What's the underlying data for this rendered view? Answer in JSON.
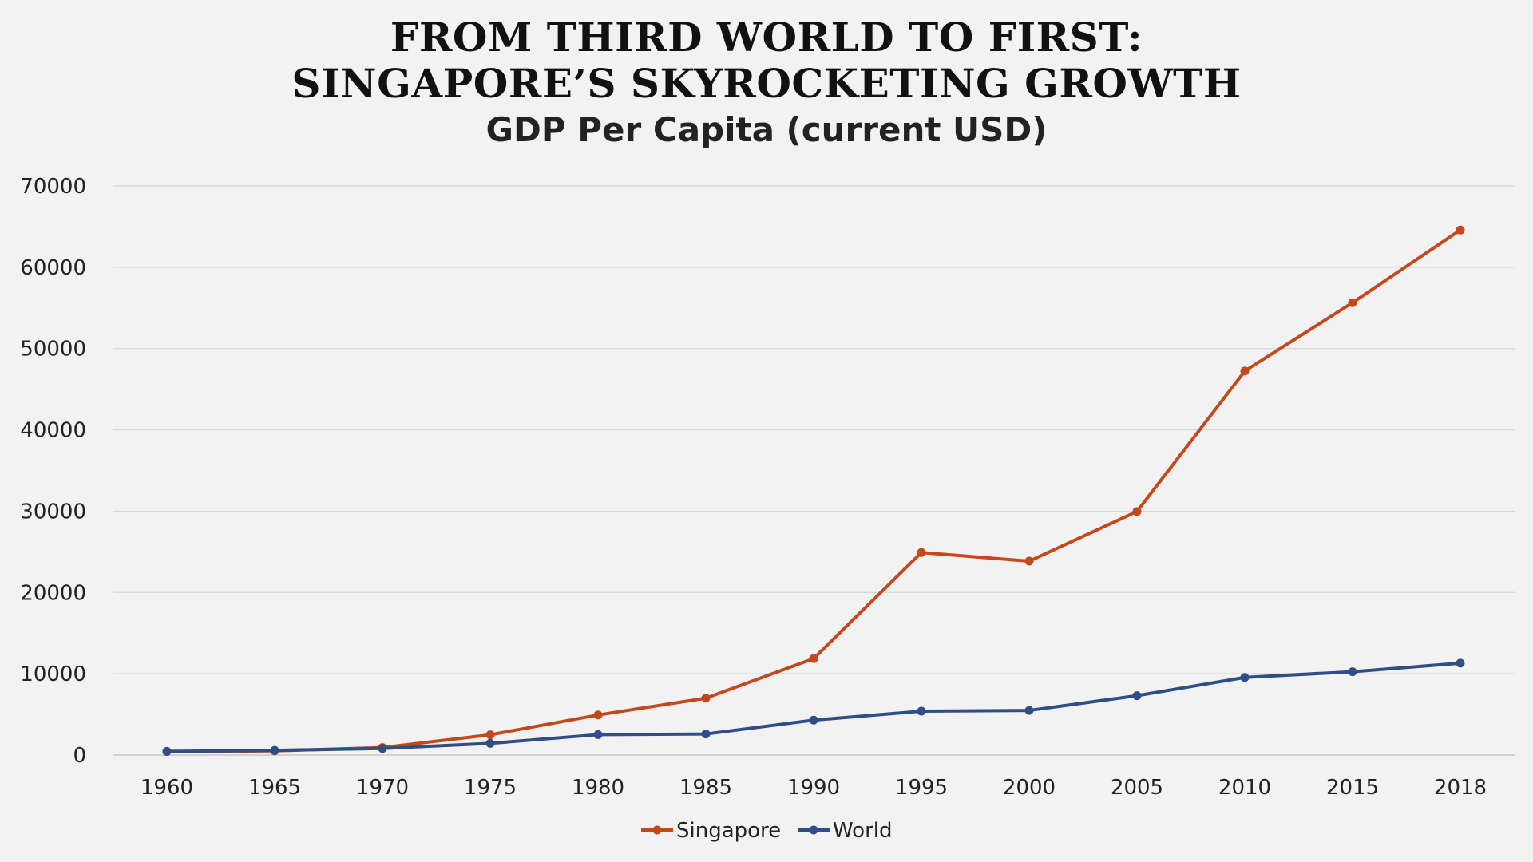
{
  "chart_data": {
    "type": "line",
    "title": "FROM THIRD WORLD TO FIRST:",
    "title_line_2": "SINGAPORE’S SKYROCKETING GROWTH",
    "subtitle": "GDP Per Capita (current USD)",
    "xlabel": "",
    "ylabel": "",
    "categories": [
      "1960",
      "1965",
      "1970",
      "1975",
      "1980",
      "1985",
      "1990",
      "1995",
      "2000",
      "2005",
      "2010",
      "2015",
      "2018"
    ],
    "ylim": [
      0,
      70000
    ],
    "yticks": [
      0,
      10000,
      20000,
      30000,
      40000,
      50000,
      60000,
      70000
    ],
    "grid": true,
    "legend_position": "bottom-center",
    "series": [
      {
        "name": "Singapore",
        "color": "#c5481a",
        "values": [
          428,
          516,
          925,
          2490,
          4928,
          6996,
          11862,
          24915,
          23853,
          29961,
          47237,
          55647,
          64582
        ]
      },
      {
        "name": "World",
        "color": "#2f4e86",
        "values": [
          450,
          580,
          810,
          1440,
          2510,
          2590,
          4300,
          5400,
          5490,
          7300,
          9550,
          10250,
          11300
        ]
      }
    ]
  }
}
